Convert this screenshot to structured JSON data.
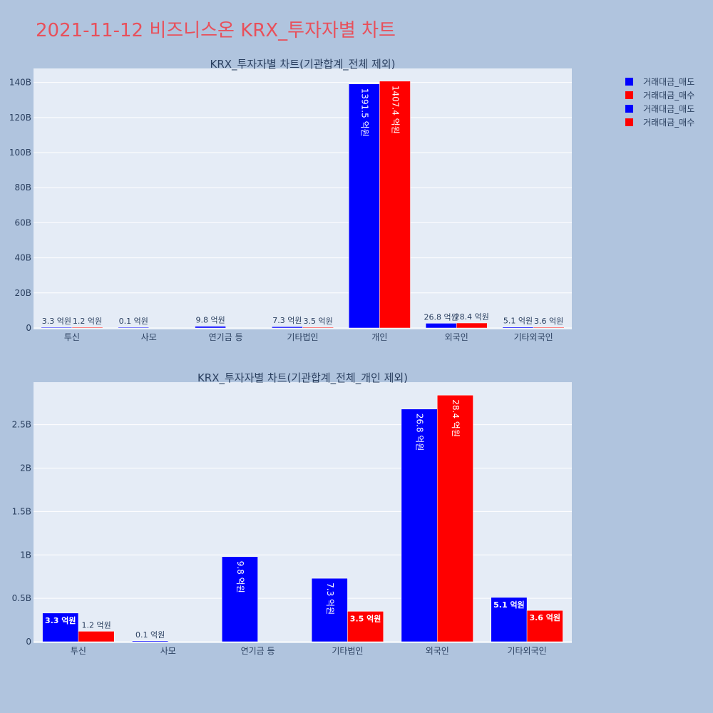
{
  "page": {
    "title": "2021-11-12 비즈니스온 KRX_투자자별 차트"
  },
  "legend": [
    {
      "name": "거래대금_매도",
      "color": "#0000ff"
    },
    {
      "name": "거래대금_매수",
      "color": "#ff0000"
    },
    {
      "name": "거래대금_매도",
      "color": "#0000ff"
    },
    {
      "name": "거래대금_매수",
      "color": "#ff0000"
    }
  ],
  "chart_data": [
    {
      "type": "bar",
      "title": "KRX_투자자별 차트(기관합계_전체 제외)",
      "categories": [
        "투신",
        "사모",
        "연기금 등",
        "기타법인",
        "개인",
        "외국인",
        "기타외국인"
      ],
      "series": [
        {
          "name": "거래대금_매도",
          "color": "#0000ff",
          "values": [
            330000000,
            10000000,
            980000000,
            730000000,
            139150000000,
            2680000000,
            510000000
          ],
          "labels": [
            "3.3 억원",
            "0.1 억원",
            "9.8 억원",
            "7.3 억원",
            "1391.5 억원",
            "26.8 억원",
            "5.1 억원"
          ]
        },
        {
          "name": "거래대금_매수",
          "color": "#ff0000",
          "values": [
            120000000,
            0,
            0,
            350000000,
            140740000000,
            2840000000,
            360000000
          ],
          "labels": [
            "1.2 억원",
            "",
            "",
            "3.5 억원",
            "1407.4 억원",
            "28.4 억원",
            "3.6 억원"
          ]
        }
      ],
      "yticks": [
        0,
        20000000000,
        40000000000,
        60000000000,
        80000000000,
        100000000000,
        120000000000,
        140000000000
      ],
      "ytick_labels": [
        "0",
        "20B",
        "40B",
        "60B",
        "80B",
        "100B",
        "120B",
        "140B"
      ],
      "ylim": [
        0,
        148000000000
      ],
      "grid": true
    },
    {
      "type": "bar",
      "title": "KRX_투자자별 차트(기관합계_전체_개인 제외)",
      "categories": [
        "투신",
        "사모",
        "연기금 등",
        "기타법인",
        "외국인",
        "기타외국인"
      ],
      "series": [
        {
          "name": "거래대금_매도",
          "color": "#0000ff",
          "values": [
            330000000,
            10000000,
            980000000,
            730000000,
            2680000000,
            510000000
          ],
          "labels": [
            "3.3 억원",
            "0.1 억원",
            "9.8 억원",
            "7.3 억원",
            "26.8 억원",
            "5.1 억원"
          ]
        },
        {
          "name": "거래대금_매수",
          "color": "#ff0000",
          "values": [
            120000000,
            0,
            0,
            350000000,
            2840000000,
            360000000
          ],
          "labels": [
            "1.2 억원",
            "",
            "",
            "3.5 억원",
            "28.4 억원",
            "3.6 억원"
          ]
        }
      ],
      "yticks": [
        0,
        500000000,
        1000000000,
        1500000000,
        2000000000,
        2500000000
      ],
      "ytick_labels": [
        "0",
        "0.5B",
        "1B",
        "1.5B",
        "2B",
        "2.5B"
      ],
      "ylim": [
        0,
        2990000000
      ],
      "grid": true
    }
  ]
}
